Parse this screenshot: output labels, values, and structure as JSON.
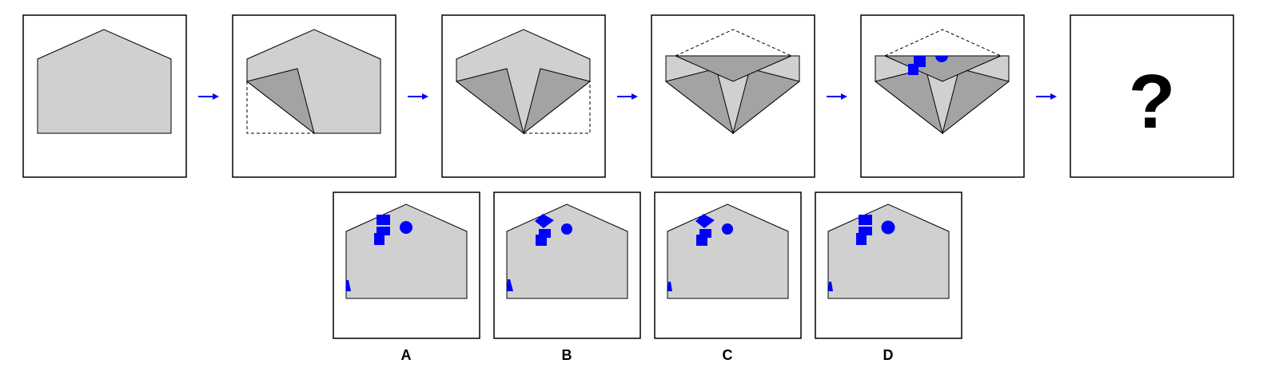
{
  "puzzle": {
    "question_mark": "?",
    "options": [
      {
        "label": "A"
      },
      {
        "label": "B"
      },
      {
        "label": "C"
      },
      {
        "label": "D"
      }
    ]
  },
  "colors": {
    "paper": "#d0d0d0",
    "fold_dark": "#a3a3a3",
    "stroke": "#000000",
    "punch": "#0000ff",
    "arrow": "#0000ff"
  }
}
